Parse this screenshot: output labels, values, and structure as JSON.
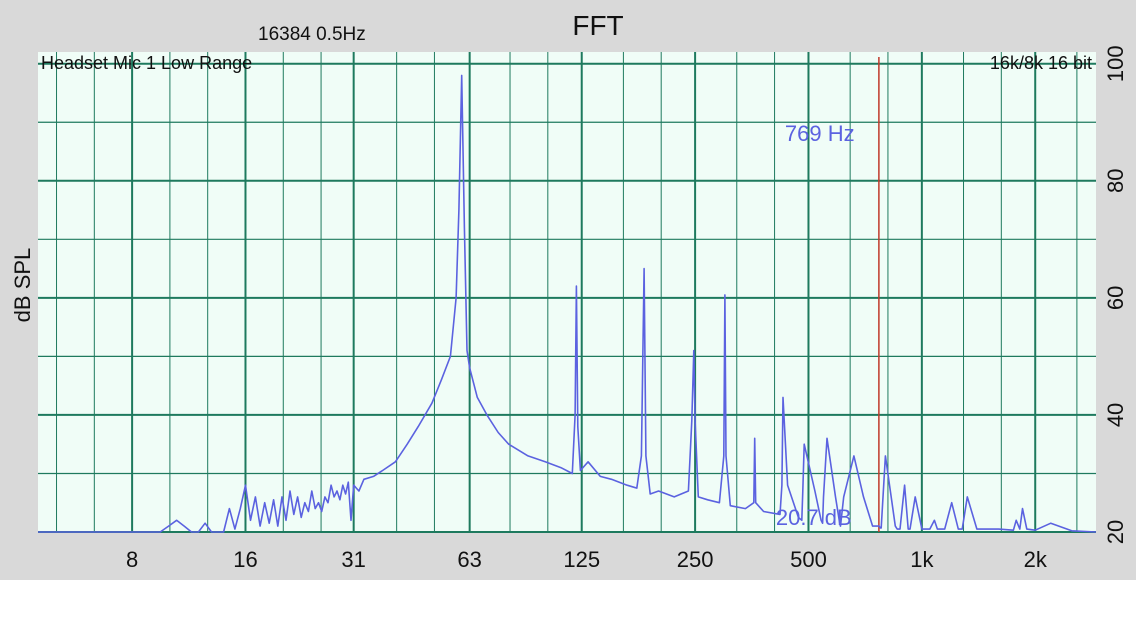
{
  "window": {
    "title": "FFT",
    "fft_info": "16384  0.5Hz",
    "source_label": "Headset Mic 1 Low Range",
    "format_label": "16k/8k 16 bit"
  },
  "cursor": {
    "frequency_label": "769 Hz",
    "level_label": "20.7 dB",
    "frequency_hz": 769
  },
  "colors": {
    "trace": "#5b62e0",
    "grid": "#1e7a5e",
    "plot_bg": "#f0fdf7",
    "cursor": "#c0392b"
  },
  "chart_data": {
    "type": "line",
    "title": "FFT",
    "ylabel": "dB SPL",
    "xlabel": "",
    "x_scale": "log",
    "xlim": [
      4.5,
      2900
    ],
    "ylim": [
      20,
      102
    ],
    "x_tick_labels": [
      "8",
      "16",
      "31",
      "63",
      "125",
      "250",
      "500",
      "1k",
      "2k"
    ],
    "x_tick_values": [
      8,
      16,
      31,
      63,
      125,
      250,
      500,
      1000,
      2000
    ],
    "y_tick_labels": [
      "20",
      "40",
      "60",
      "80",
      "100"
    ],
    "y_tick_values": [
      20,
      40,
      60,
      80,
      100
    ],
    "grid": true,
    "series": [
      {
        "x": [
          4.5,
          8,
          9.5,
          10,
          10.5,
          11,
          11.5,
          12,
          12.5,
          13,
          14,
          14.5,
          15,
          15.5,
          16,
          16.5,
          17,
          17.5,
          18,
          18.5,
          19,
          19.5,
          20,
          20.5,
          21,
          21.5,
          22,
          22.5,
          23,
          23.5,
          24,
          24.5,
          25,
          25.5,
          26,
          26.5,
          27,
          27.5,
          28,
          28.5,
          29,
          29.5,
          30,
          30.5,
          31,
          32,
          33,
          35,
          37,
          40,
          43,
          46,
          50,
          53,
          56,
          58,
          59,
          60,
          61,
          62,
          63,
          66,
          70,
          75,
          80,
          90,
          100,
          110,
          118,
          120,
          121,
          122,
          124,
          130,
          140,
          150,
          165,
          175,
          180,
          183,
          185,
          190,
          200,
          220,
          240,
          245,
          248,
          250,
          255,
          270,
          290,
          298,
          300,
          302,
          310,
          340,
          358,
          360,
          362,
          380,
          420,
          425,
          428,
          440,
          470,
          480,
          483,
          487,
          520,
          540,
          545,
          548,
          560,
          590,
          605,
          608,
          620,
          660,
          700,
          740,
          770,
          775,
          780,
          800,
          850,
          860,
          875,
          900,
          920,
          930,
          960,
          1000,
          1050,
          1080,
          1100,
          1150,
          1200,
          1250,
          1280,
          1320,
          1400,
          1600,
          1750,
          1780,
          1820,
          1850,
          1900,
          2000,
          2200,
          2500,
          2900
        ],
        "y": [
          20,
          20,
          20,
          21,
          22,
          21,
          20,
          20,
          21.5,
          20,
          20,
          24,
          20.5,
          24,
          28,
          22,
          26,
          21,
          25,
          21.5,
          25.5,
          21,
          26,
          22,
          27,
          23,
          26,
          22.5,
          25,
          23.5,
          27,
          24,
          25,
          23.5,
          26,
          25,
          28,
          26,
          27,
          25.5,
          28,
          26.5,
          28.5,
          22,
          28,
          27,
          29,
          29.5,
          30.5,
          32,
          35,
          38,
          42,
          46,
          50,
          60,
          75,
          98,
          72,
          51,
          48,
          43,
          40,
          37,
          35,
          33,
          32,
          31,
          30,
          40,
          62,
          38,
          30.5,
          32,
          29.5,
          29,
          28,
          27.5,
          33,
          65,
          33,
          26.5,
          27,
          26,
          27,
          39,
          51,
          39,
          26,
          25.5,
          25,
          33,
          60.5,
          33,
          24.5,
          24,
          25,
          36,
          25,
          23.5,
          23,
          28,
          43,
          28,
          22.5,
          22,
          27,
          35,
          27,
          22,
          21.5,
          26,
          36,
          26,
          21.5,
          21,
          26,
          33,
          26,
          21,
          21,
          20.7,
          20.7,
          33,
          21,
          20.5,
          20.5,
          28,
          20.5,
          20.5,
          26,
          20.5,
          20.5,
          22,
          20.5,
          20.5,
          25,
          20.5,
          20.5,
          26,
          20.5,
          20.5,
          20.3,
          22,
          20.5,
          24,
          20.5,
          20.3,
          21.5,
          20.2,
          20
        ]
      }
    ]
  }
}
